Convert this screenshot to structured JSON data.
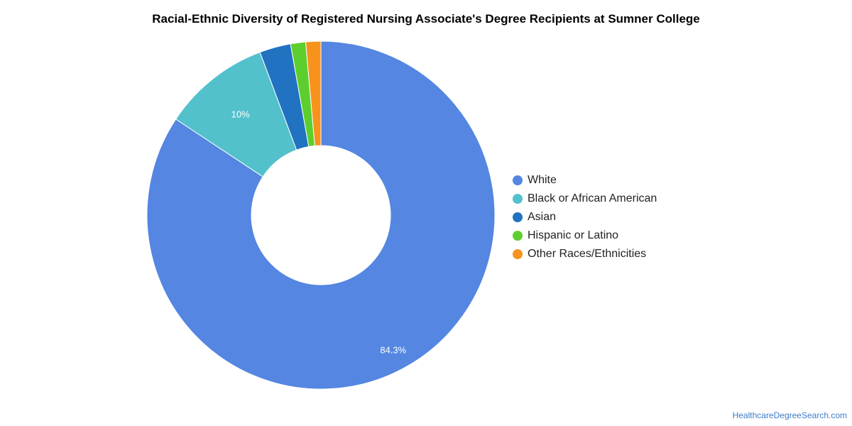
{
  "chart_data": {
    "type": "pie",
    "variant": "donut",
    "title": "Racial-Ethnic Diversity of Registered Nursing Associate's Degree Recipients at Sumner College",
    "legend_position": "right",
    "slices": [
      {
        "name": "White",
        "value": 84.3,
        "label": "84.3%",
        "color": "#5486e2"
      },
      {
        "name": "Black or African American",
        "value": 10.0,
        "label": "10%",
        "color": "#52c1cc"
      },
      {
        "name": "Asian",
        "value": 2.9,
        "label": "",
        "color": "#2172c0"
      },
      {
        "name": "Hispanic or Latino",
        "value": 1.4,
        "label": "",
        "color": "#5ccf2e"
      },
      {
        "name": "Other Races/Ethnicities",
        "value": 1.4,
        "label": "",
        "color": "#f7931d"
      }
    ]
  },
  "footer": {
    "credit": "HealthcareDegreeSearch.com"
  }
}
